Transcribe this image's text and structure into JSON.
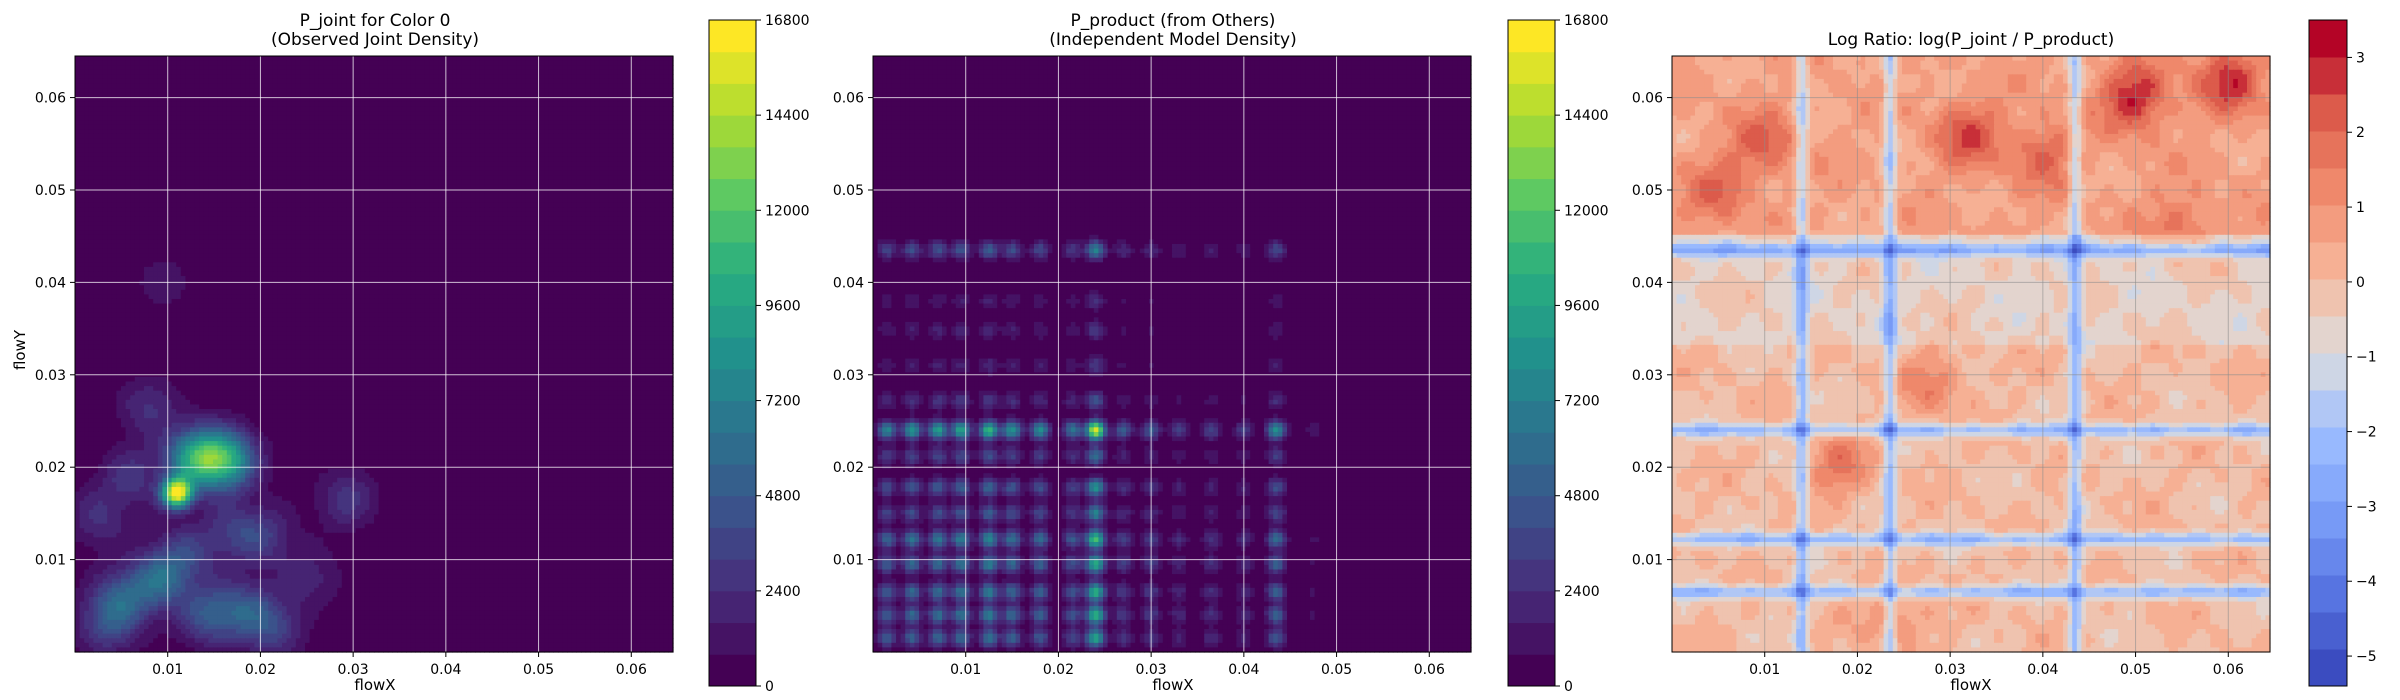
{
  "chart_data": [
    {
      "type": "heatmap",
      "title": "P_joint for Color 0",
      "subtitle": "(Observed Joint Density)",
      "xlabel": "flowX",
      "ylabel": "flowY",
      "xlim": [
        0.0,
        0.0645
      ],
      "ylim": [
        0.0,
        0.0645
      ],
      "xticks": [
        "0.01",
        "0.02",
        "0.03",
        "0.04",
        "0.05",
        "0.06"
      ],
      "yticks": [
        "0.01",
        "0.02",
        "0.03",
        "0.04",
        "0.05",
        "0.06"
      ],
      "grid": true,
      "colormap": "viridis",
      "colorbar": {
        "min": 0,
        "max": 16800,
        "ticks": [
          "0",
          "2400",
          "4800",
          "7200",
          "9600",
          "12000",
          "14400",
          "16800"
        ]
      },
      "background_value": 0,
      "hotspots": [
        {
          "x": 0.011,
          "y": 0.0172,
          "value": 16500
        },
        {
          "x": 0.013,
          "y": 0.021,
          "value": 9000
        },
        {
          "x": 0.0163,
          "y": 0.0208,
          "value": 9200
        },
        {
          "x": 0.0092,
          "y": 0.0078,
          "value": 5000
        },
        {
          "x": 0.0052,
          "y": 0.0058,
          "value": 4200
        },
        {
          "x": 0.0145,
          "y": 0.004,
          "value": 4300
        },
        {
          "x": 0.0035,
          "y": 0.003,
          "value": 3500
        },
        {
          "x": 0.0185,
          "y": 0.0045,
          "value": 3800
        },
        {
          "x": 0.0205,
          "y": 0.0125,
          "value": 2600
        },
        {
          "x": 0.0295,
          "y": 0.0165,
          "value": 2800
        },
        {
          "x": 0.017,
          "y": 0.013,
          "value": 2500
        },
        {
          "x": 0.008,
          "y": 0.0265,
          "value": 2400
        },
        {
          "x": 0.0025,
          "y": 0.0145,
          "value": 2200
        },
        {
          "x": 0.0215,
          "y": 0.0025,
          "value": 3000
        },
        {
          "x": 0.012,
          "y": 0.0105,
          "value": 2800
        },
        {
          "x": 0.006,
          "y": 0.019,
          "value": 2500
        },
        {
          "x": 0.0255,
          "y": 0.008,
          "value": 1800
        },
        {
          "x": 0.0095,
          "y": 0.04,
          "value": 1400
        }
      ]
    },
    {
      "type": "heatmap",
      "title": "P_product (from Others)",
      "subtitle": "(Independent Model Density)",
      "xlabel": "flowX",
      "ylabel": "",
      "xlim": [
        0.0,
        0.0645
      ],
      "ylim": [
        0.0,
        0.0645
      ],
      "xticks": [
        "0.01",
        "0.02",
        "0.03",
        "0.04",
        "0.05",
        "0.06"
      ],
      "yticks": [
        "0.01",
        "0.02",
        "0.03",
        "0.04",
        "0.05",
        "0.06"
      ],
      "grid": true,
      "colormap": "viridis",
      "colorbar": {
        "min": 0,
        "max": 16800,
        "ticks": [
          "0",
          "2400",
          "4800",
          "7200",
          "9600",
          "12000",
          "14400",
          "16800"
        ]
      },
      "background_value": 0,
      "x_marginal_peaks": [
        {
          "x": 0.0015,
          "w": 0.7
        },
        {
          "x": 0.0042,
          "w": 0.8
        },
        {
          "x": 0.007,
          "w": 0.85
        },
        {
          "x": 0.0095,
          "w": 0.9
        },
        {
          "x": 0.0125,
          "w": 1.0
        },
        {
          "x": 0.015,
          "w": 0.8
        },
        {
          "x": 0.018,
          "w": 0.75
        },
        {
          "x": 0.0215,
          "w": 0.6
        },
        {
          "x": 0.024,
          "w": 1.45
        },
        {
          "x": 0.027,
          "w": 0.45
        },
        {
          "x": 0.03,
          "w": 0.45
        },
        {
          "x": 0.033,
          "w": 0.3
        },
        {
          "x": 0.0365,
          "w": 0.35
        },
        {
          "x": 0.04,
          "w": 0.3
        },
        {
          "x": 0.0435,
          "w": 0.75
        },
        {
          "x": 0.0475,
          "w": 0.12
        }
      ],
      "y_marginal_peaks": [
        {
          "y": 0.0015,
          "w": 0.9
        },
        {
          "y": 0.004,
          "w": 1.0
        },
        {
          "y": 0.0065,
          "w": 1.0
        },
        {
          "y": 0.0095,
          "w": 1.0
        },
        {
          "y": 0.0122,
          "w": 1.1
        },
        {
          "y": 0.015,
          "w": 0.7
        },
        {
          "y": 0.0178,
          "w": 0.8
        },
        {
          "y": 0.0212,
          "w": 0.6
        },
        {
          "y": 0.024,
          "w": 1.5
        },
        {
          "y": 0.0272,
          "w": 0.45
        },
        {
          "y": 0.031,
          "w": 0.3
        },
        {
          "y": 0.0348,
          "w": 0.3
        },
        {
          "y": 0.038,
          "w": 0.25
        },
        {
          "y": 0.0435,
          "w": 0.7
        }
      ],
      "peak_value": 16000
    },
    {
      "type": "heatmap",
      "title": "Log Ratio: log(P_joint / P_product)",
      "xlabel": "flowX",
      "ylabel": "",
      "xlim": [
        0.0,
        0.0645
      ],
      "ylim": [
        0.0,
        0.0645
      ],
      "xticks": [
        "0.01",
        "0.02",
        "0.03",
        "0.04",
        "0.05",
        "0.06"
      ],
      "yticks": [
        "0.01",
        "0.02",
        "0.03",
        "0.04",
        "0.05",
        "0.06"
      ],
      "grid": true,
      "colormap": "coolwarm",
      "colorbar": {
        "min": -5.4,
        "max": 3.5,
        "ticks": [
          "−5",
          "−4",
          "−3",
          "−2",
          "−1",
          "0",
          "1",
          "2",
          "3"
        ],
        "tick_values": [
          -5,
          -4,
          -3,
          -2,
          -1,
          0,
          1,
          2,
          3
        ]
      },
      "blue_lines_x": [
        0.0235,
        0.0435,
        0.014
      ],
      "blue_lines_y": [
        0.0435,
        0.024,
        0.0122,
        0.0065
      ],
      "red_regions": [
        {
          "x": 0.05,
          "y": 0.06,
          "value": 2.5
        },
        {
          "x": 0.06,
          "y": 0.062,
          "value": 2.2
        },
        {
          "x": 0.032,
          "y": 0.056,
          "value": 1.8
        },
        {
          "x": 0.01,
          "y": 0.055,
          "value": 1.5
        },
        {
          "x": 0.018,
          "y": 0.02,
          "value": 1.6
        },
        {
          "x": 0.028,
          "y": 0.029,
          "value": 1.4
        },
        {
          "x": 0.005,
          "y": 0.05,
          "value": 1.3
        },
        {
          "x": 0.04,
          "y": 0.054,
          "value": 1.5
        },
        {
          "x": 0.024,
          "y": 0.004,
          "value": 1.3
        },
        {
          "x": 0.055,
          "y": 0.046,
          "value": 1.2
        }
      ]
    }
  ]
}
